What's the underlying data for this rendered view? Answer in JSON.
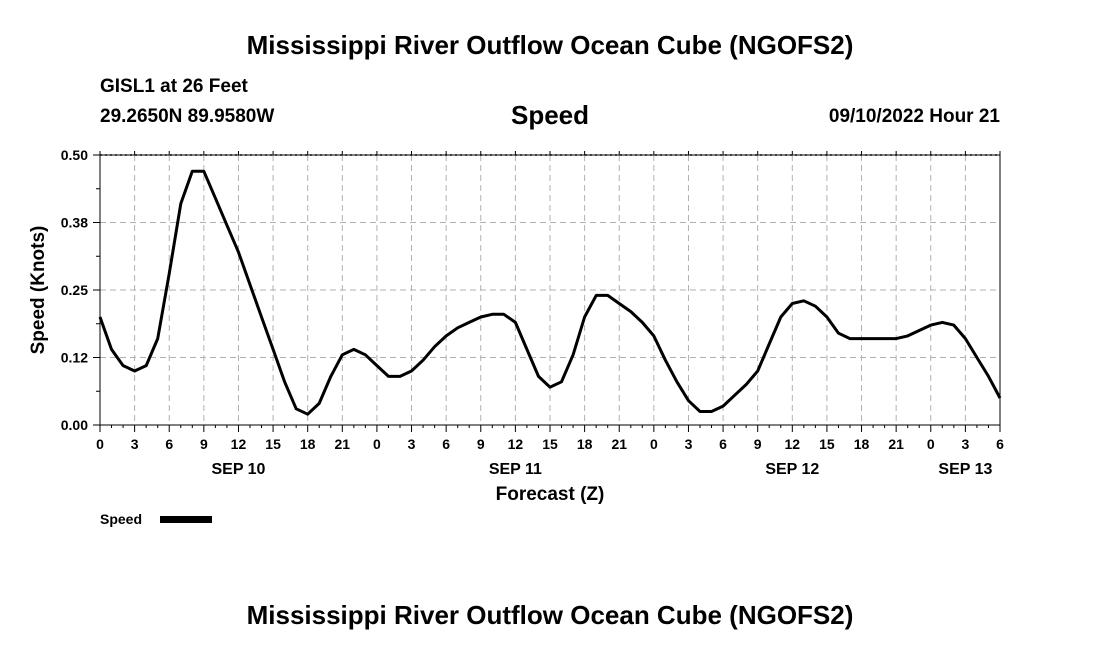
{
  "page": {
    "title_top": "Mississippi River Outflow Ocean Cube (NGOFS2)",
    "title_bottom": "Mississippi River Outflow Ocean Cube (NGOFS2)",
    "station": "GISL1 at 26 Feet",
    "coords": "29.2650N  89.9580W",
    "variable": "Speed",
    "datetime": "09/10/2022 Hour 21"
  },
  "chart_data": {
    "type": "line",
    "title": "Speed",
    "xlabel": "Forecast (Z)",
    "ylabel": "Speed (Knots)",
    "ylim": [
      0,
      0.5
    ],
    "xlim": [
      0,
      78
    ],
    "grid": true,
    "legend_position": "bottom-left",
    "y_ticks": [
      0.0,
      0.125,
      0.25,
      0.375,
      0.5
    ],
    "y_tick_labels": [
      "0.00",
      "0.12",
      "0.25",
      "0.38",
      "0.50"
    ],
    "x_ticks": [
      0,
      3,
      6,
      9,
      12,
      15,
      18,
      21,
      24,
      27,
      30,
      33,
      36,
      39,
      42,
      45,
      48,
      51,
      54,
      57,
      60,
      63,
      66,
      69,
      72,
      75,
      78
    ],
    "x_tick_labels": [
      "0",
      "3",
      "6",
      "9",
      "12",
      "15",
      "18",
      "21",
      "0",
      "3",
      "6",
      "9",
      "12",
      "15",
      "18",
      "21",
      "0",
      "3",
      "6",
      "9",
      "12",
      "15",
      "18",
      "21",
      "0",
      "3",
      "6"
    ],
    "date_labels": [
      {
        "hour": 12,
        "text": "SEP 10"
      },
      {
        "hour": 36,
        "text": "SEP 11"
      },
      {
        "hour": 60,
        "text": "SEP 12"
      },
      {
        "hour": 75,
        "text": "SEP 13"
      }
    ],
    "series": [
      {
        "name": "Speed",
        "x": [
          0,
          1,
          2,
          3,
          4,
          5,
          6,
          7,
          8,
          9,
          10,
          11,
          12,
          13,
          14,
          15,
          16,
          17,
          18,
          19,
          20,
          21,
          22,
          23,
          24,
          25,
          26,
          27,
          28,
          29,
          30,
          31,
          32,
          33,
          34,
          35,
          36,
          37,
          38,
          39,
          40,
          41,
          42,
          43,
          44,
          45,
          46,
          47,
          48,
          49,
          50,
          51,
          52,
          53,
          54,
          55,
          56,
          57,
          58,
          59,
          60,
          61,
          62,
          63,
          64,
          65,
          66,
          67,
          68,
          69,
          70,
          71,
          72,
          73,
          74,
          75,
          76,
          77,
          78
        ],
        "values": [
          0.2,
          0.14,
          0.11,
          0.1,
          0.11,
          0.16,
          0.28,
          0.41,
          0.47,
          0.47,
          0.42,
          0.37,
          0.32,
          0.26,
          0.2,
          0.14,
          0.08,
          0.03,
          0.02,
          0.04,
          0.09,
          0.13,
          0.14,
          0.13,
          0.11,
          0.09,
          0.09,
          0.1,
          0.12,
          0.145,
          0.165,
          0.18,
          0.19,
          0.2,
          0.205,
          0.205,
          0.19,
          0.14,
          0.09,
          0.07,
          0.08,
          0.13,
          0.2,
          0.24,
          0.24,
          0.225,
          0.21,
          0.19,
          0.165,
          0.12,
          0.08,
          0.045,
          0.025,
          0.025,
          0.035,
          0.055,
          0.075,
          0.1,
          0.15,
          0.2,
          0.225,
          0.23,
          0.22,
          0.2,
          0.17,
          0.16,
          0.16,
          0.16,
          0.16,
          0.16,
          0.165,
          0.175,
          0.185,
          0.19,
          0.185,
          0.16,
          0.125,
          0.09,
          0.05
        ]
      }
    ]
  }
}
